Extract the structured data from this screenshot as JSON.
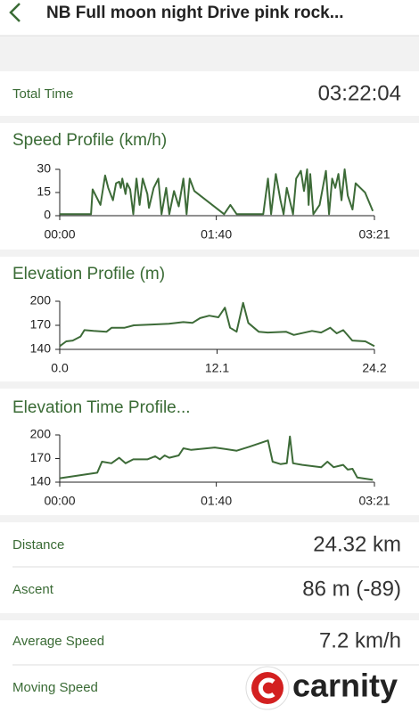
{
  "header": {
    "title": "NB Full moon night Drive pink rock..."
  },
  "total_time": {
    "label": "Total Time",
    "value": "03:22:04"
  },
  "chart_data": [
    {
      "type": "line",
      "title": "Speed Profile (km/h)",
      "color": "#3d6b38",
      "x": [
        0,
        20,
        21,
        26,
        29,
        31,
        34,
        36,
        38,
        39,
        40,
        42,
        43,
        45,
        47,
        49,
        51,
        53,
        56,
        57,
        60,
        63,
        65,
        68,
        70,
        73,
        76,
        79,
        81,
        83,
        86,
        105,
        109,
        113,
        130,
        133,
        135,
        138,
        141,
        143,
        145,
        149,
        151,
        154,
        156,
        158,
        159,
        160,
        162,
        166,
        170,
        172,
        174,
        176,
        178,
        180,
        182,
        184,
        187,
        189,
        192,
        195,
        200
      ],
      "values": [
        1,
        1,
        17,
        7,
        26,
        18,
        10,
        21,
        22,
        18,
        24,
        14,
        21,
        17,
        1,
        24,
        7,
        24,
        14,
        5,
        18,
        24,
        1,
        18,
        1,
        16,
        6,
        24,
        1,
        24,
        16,
        1,
        7,
        1,
        1,
        24,
        1,
        27,
        10,
        1,
        18,
        1,
        24,
        29,
        16,
        30,
        7,
        27,
        1,
        7,
        29,
        1,
        24,
        18,
        27,
        10,
        30,
        13,
        4,
        21,
        18,
        15,
        3
      ],
      "xlim": [
        0,
        201
      ],
      "xticks": [
        {
          "value": 0,
          "label": "00:00"
        },
        {
          "value": 100,
          "label": "01:40"
        },
        {
          "value": 201,
          "label": "03:21"
        }
      ],
      "ylim": [
        0,
        30
      ],
      "yticks": [
        0,
        15,
        30
      ]
    },
    {
      "type": "line",
      "title": "Elevation Profile (m)",
      "color": "#3d6b38",
      "x": [
        0,
        0.5,
        1.0,
        1.6,
        1.9,
        2.6,
        3.6,
        4.0,
        5.0,
        5.7,
        7.1,
        8.4,
        9.5,
        10.2,
        10.8,
        11.5,
        12.2,
        12.7,
        13.1,
        13.6,
        14.1,
        14.5,
        15.3,
        16.0,
        17.4,
        18.0,
        19.4,
        20.1,
        20.8,
        21.3,
        21.8,
        22.5,
        23.5,
        24.2
      ],
      "values": [
        144,
        150,
        151,
        156,
        164,
        163,
        162,
        167,
        167,
        170,
        171,
        172,
        174,
        173,
        179,
        182,
        180,
        192,
        167,
        162,
        198,
        173,
        162,
        161,
        162,
        158,
        163,
        161,
        167,
        160,
        164,
        151,
        150,
        144
      ],
      "xlim": [
        0,
        24.2
      ],
      "xticks": [
        {
          "value": 0,
          "label": "0.0"
        },
        12.1,
        24.2
      ],
      "ylim": [
        140,
        200
      ],
      "yticks": [
        140,
        170,
        200
      ]
    },
    {
      "type": "line",
      "title": "Elevation Time Profile...",
      "color": "#3d6b38",
      "x": [
        0,
        24,
        27,
        33,
        38,
        42,
        47,
        56,
        61,
        64,
        67,
        70,
        76,
        79,
        84,
        99,
        113,
        121,
        133,
        136,
        141,
        145,
        147,
        149,
        155,
        167,
        171,
        175,
        181,
        184,
        187,
        190,
        200
      ],
      "values": [
        145,
        152,
        166,
        164,
        171,
        164,
        169,
        169,
        173,
        169,
        174,
        171,
        174,
        183,
        181,
        184,
        180,
        185,
        193,
        166,
        163,
        164,
        198,
        164,
        162,
        159,
        166,
        159,
        162,
        156,
        157,
        146,
        143
      ],
      "xlim": [
        0,
        201
      ],
      "xticks": [
        {
          "value": 0,
          "label": "00:00"
        },
        {
          "value": 100,
          "label": "01:40"
        },
        {
          "value": 201,
          "label": "03:21"
        }
      ],
      "ylim": [
        140,
        200
      ],
      "yticks": [
        140,
        170,
        200
      ]
    }
  ],
  "stats": [
    {
      "label": "Distance",
      "value": "24.32 km"
    },
    {
      "label": "Ascent",
      "value": "86 m (-89)"
    },
    {
      "label": "Average Speed",
      "value": "7.2 km/h"
    },
    {
      "label": "Moving Speed"
    }
  ],
  "watermark": "carnity"
}
